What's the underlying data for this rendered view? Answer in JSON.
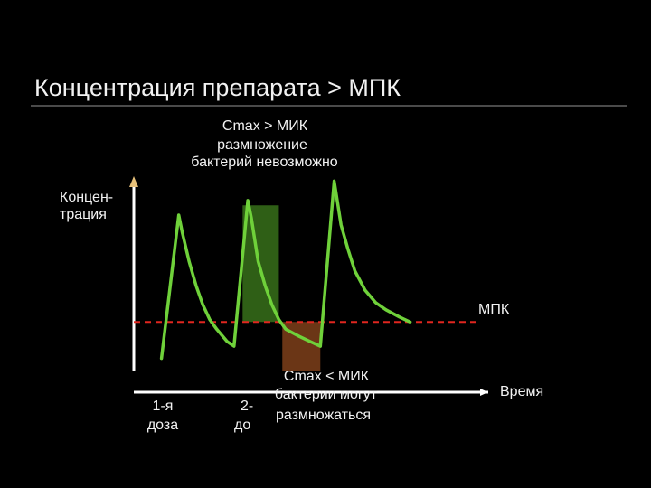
{
  "title": "Концентрация препарата > МПК",
  "annotations": {
    "top_line1": "Cmax > МИК",
    "top_line2": "размножение",
    "top_line3": "бактерий невозможно",
    "bottom_line1": "Cmax < МИК",
    "bottom_line2": "бактерии могут",
    "bottom_line3": "размножаться",
    "y_label_line1": "Концен-",
    "y_label_line2": "трация",
    "x_label": "Время",
    "threshold_label": "МПК",
    "dose1_line1": "1-я",
    "dose1_line2": "доза",
    "dose2_line1": "2-",
    "dose2_line2": "до"
  },
  "colors": {
    "curve": "#6fd13a",
    "threshold": "#e0261f",
    "above_zone": "#2f5f16",
    "below_zone": "#6b3616",
    "axes": "#ffffff",
    "arrow_accent": "#e6c07a"
  },
  "chart_data": {
    "type": "line",
    "title": "Концентрация препарата > МПК",
    "xlabel": "Время",
    "ylabel": "Концентрация",
    "threshold": {
      "name": "МПК",
      "value": 20
    },
    "xlim": [
      0,
      100
    ],
    "ylim": [
      0,
      80
    ],
    "series": [
      {
        "name": "",
        "points": [
          [
            8,
            5
          ],
          [
            13,
            64
          ],
          [
            14,
            57
          ],
          [
            16,
            45
          ],
          [
            18,
            35
          ],
          [
            20,
            27
          ],
          [
            22,
            21
          ],
          [
            24,
            17
          ],
          [
            27,
            12
          ],
          [
            29,
            10
          ],
          [
            33,
            70
          ],
          [
            34,
            63
          ],
          [
            35,
            54
          ],
          [
            36,
            45
          ],
          [
            38,
            35
          ],
          [
            40,
            27
          ],
          [
            42,
            21
          ],
          [
            44,
            17
          ],
          [
            48,
            14
          ],
          [
            51,
            12
          ],
          [
            54,
            10
          ],
          [
            58,
            78
          ],
          [
            59,
            69
          ],
          [
            60,
            60
          ],
          [
            62,
            50
          ],
          [
            64,
            41
          ],
          [
            67,
            33
          ],
          [
            70,
            28
          ],
          [
            73,
            25
          ],
          [
            77,
            22
          ],
          [
            80,
            20
          ]
        ]
      }
    ],
    "zones": [
      {
        "label": "Cmax > МИК",
        "x": [
          31.5,
          42
        ],
        "y": [
          20,
          68
        ]
      },
      {
        "label": "Cmax < МИК",
        "x": [
          43,
          54
        ],
        "y": [
          0,
          20
        ]
      }
    ]
  }
}
